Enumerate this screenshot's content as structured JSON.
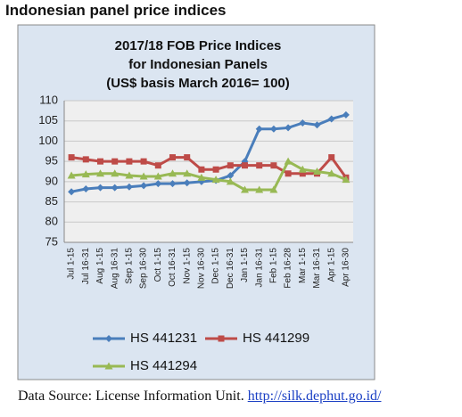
{
  "heading": "Indonesian panel price indices",
  "source": {
    "text": "Data Source: License Information Unit.",
    "link": "http://silk.dephut.go.id/"
  },
  "chart_data": {
    "type": "line",
    "title": [
      "2017/18 FOB Price Indices",
      "for Indonesian Panels",
      "(US$ basis March 2016= 100)"
    ],
    "categories": [
      "Jul 1-15",
      "Jul 16-31",
      "Aug 1-15",
      "Aug 16-31",
      "Sep 1-15",
      "Sep 16-30",
      "Oct 1-15",
      "Oct 16-31",
      "Nov 1-15",
      "Nov 16-30",
      "Dec 1-15",
      "Dec 16-31",
      "Jan 1-15",
      "Jan 16-31",
      "Feb 1-15",
      "Feb 16-28",
      "Mar 1-15",
      "Mar 16-31",
      "Apr 1-15",
      "Apr 16-30"
    ],
    "series": [
      {
        "name": "HS 441231",
        "color": "#4a7ebb",
        "marker": "diamond",
        "values": [
          87.5,
          88.2,
          88.5,
          88.5,
          88.7,
          89,
          89.5,
          89.5,
          89.7,
          90,
          90.3,
          91.5,
          95,
          103,
          103,
          103.3,
          104.5,
          104,
          105.5,
          106.5
        ]
      },
      {
        "name": "HS 441299",
        "color": "#be4b48",
        "marker": "square",
        "values": [
          96,
          95.5,
          95,
          95,
          95,
          95,
          94,
          96,
          96,
          93,
          93,
          94,
          94,
          94,
          94,
          92,
          92,
          92,
          96,
          91
        ]
      },
      {
        "name": "HS 441294",
        "color": "#98b954",
        "marker": "triangle",
        "values": [
          91.5,
          91.8,
          92,
          92,
          91.5,
          91.3,
          91.3,
          92,
          92,
          91,
          90.5,
          90,
          88,
          88,
          88,
          95,
          93,
          92.5,
          92,
          90.5
        ]
      }
    ],
    "ylim": [
      75,
      110
    ],
    "yticks": [
      75,
      80,
      85,
      90,
      95,
      100,
      105,
      110
    ],
    "grid": true
  }
}
